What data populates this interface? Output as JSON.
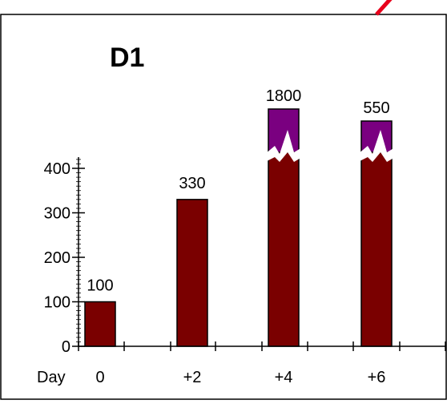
{
  "chart_data": {
    "type": "bar",
    "title": "D1",
    "xlabel": "Day",
    "ylabel": "",
    "categories": [
      "0",
      "+2",
      "+4",
      "+6"
    ],
    "values": [
      100,
      330,
      1800,
      550
    ],
    "data_labels": [
      "100",
      "330",
      "1800",
      "550"
    ],
    "yticks": [
      "0",
      "100",
      "200",
      "300",
      "400"
    ],
    "ylim": [
      0,
      400
    ],
    "axis_break": true,
    "grid": false,
    "legend": "none",
    "colors": {
      "bar": "#7a0000",
      "break_section": "#7a0080",
      "accent_mark": "#e8001c",
      "frame": "#000000"
    }
  }
}
